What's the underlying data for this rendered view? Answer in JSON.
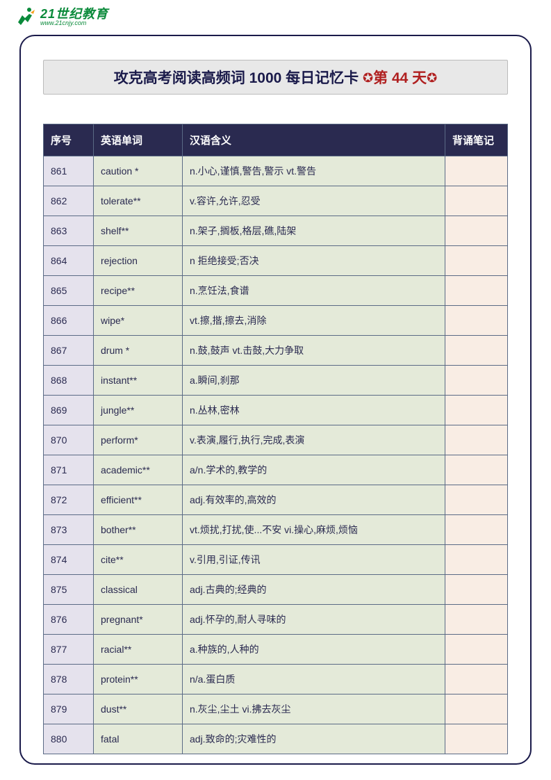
{
  "logo": {
    "main": "21世纪教育",
    "sub": "www.21cnjy.com"
  },
  "title": {
    "main": "攻克高考阅读高频词 1000  每日记忆卡  ",
    "day_prefix": "第 ",
    "day_num": "44",
    "day_suffix": " 天"
  },
  "columns": [
    "序号",
    "英语单词",
    "汉语含义",
    "背诵笔记"
  ],
  "rows": [
    {
      "num": "861",
      "word": "caution *",
      "meaning": "n.小心,谨慎,警告,警示  vt.警告"
    },
    {
      "num": "862",
      "word": "tolerate**",
      "meaning": "v.容许,允许,忍受"
    },
    {
      "num": "863",
      "word": "shelf**",
      "meaning": "n.架子,搁板,格层,礁,陆架"
    },
    {
      "num": "864",
      "word": "rejection",
      "meaning": "n 拒绝接受;否决"
    },
    {
      "num": "865",
      "word": "recipe**",
      "meaning": "n.烹饪法,食谱"
    },
    {
      "num": "866",
      "word": "wipe*",
      "meaning": "vt.擦,揩,擦去,消除"
    },
    {
      "num": "867",
      "word": "drum *",
      "meaning": "n.鼓,鼓声  vt.击鼓,大力争取"
    },
    {
      "num": "868",
      "word": "instant**",
      "meaning": "a.瞬间,刹那"
    },
    {
      "num": "869",
      "word": "jungle**",
      "meaning": "n.丛林,密林"
    },
    {
      "num": "870",
      "word": "perform*",
      "meaning": "v.表演,履行,执行,完成,表演"
    },
    {
      "num": "871",
      "word": "academic**",
      "meaning": "a/n.学术的,教学的"
    },
    {
      "num": "872",
      "word": "efficient**",
      "meaning": "adj.有效率的,高效的"
    },
    {
      "num": "873",
      "word": "bother**",
      "meaning": "vt.烦扰,打扰,使...不安  vi.操心,麻烦,烦恼"
    },
    {
      "num": "874",
      "word": "cite**",
      "meaning": "v.引用,引证,传讯"
    },
    {
      "num": "875",
      "word": "classical",
      "meaning": "adj.古典的;经典的"
    },
    {
      "num": "876",
      "word": "pregnant*",
      "meaning": "adj.怀孕的,耐人寻味的"
    },
    {
      "num": "877",
      "word": "racial**",
      "meaning": "a.种族的,人种的"
    },
    {
      "num": "878",
      "word": "protein**",
      "meaning": "n/a.蛋白质"
    },
    {
      "num": "879",
      "word": "dust**",
      "meaning": "n.灰尘,尘土  vi.拂去灰尘"
    },
    {
      "num": "880",
      "word": "fatal",
      "meaning": "adj.致命的;灾难性的"
    }
  ]
}
